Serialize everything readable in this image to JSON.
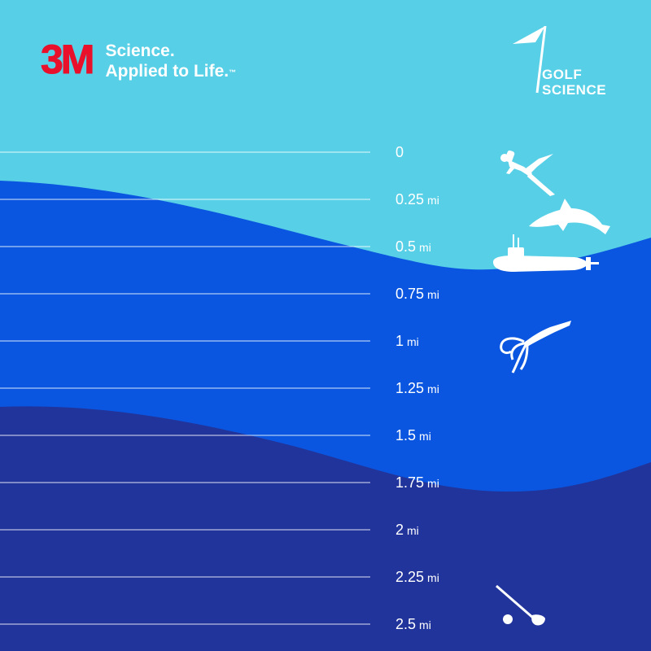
{
  "brand": {
    "logo_text": "3M",
    "tagline_line1": "Science.",
    "tagline_line2": "Applied to Life.",
    "trademark": "™"
  },
  "partner": {
    "line1": "GOLF",
    "line2": "SCIENCE"
  },
  "depth_scale": {
    "unit": "mi",
    "marks": [
      {
        "value": "0",
        "unit": ""
      },
      {
        "value": "0.25",
        "unit": "mi"
      },
      {
        "value": "0.5",
        "unit": "mi"
      },
      {
        "value": "0.75",
        "unit": "mi"
      },
      {
        "value": "1",
        "unit": "mi"
      },
      {
        "value": "1.25",
        "unit": "mi"
      },
      {
        "value": "1.5",
        "unit": "mi"
      },
      {
        "value": "1.75",
        "unit": "mi"
      },
      {
        "value": "2",
        "unit": "mi"
      },
      {
        "value": "2.25",
        "unit": "mi"
      },
      {
        "value": "2.5",
        "unit": "mi"
      }
    ]
  },
  "icons": [
    "scuba-diver-icon",
    "dolphin-icon",
    "submarine-icon",
    "squid-icon",
    "golf-club-icon"
  ],
  "colors": {
    "sky_water": "#57cfe6",
    "mid_water": "#0a56e0",
    "deep_water": "#21349b",
    "logo_red": "#e8102a",
    "white": "#ffffff"
  }
}
